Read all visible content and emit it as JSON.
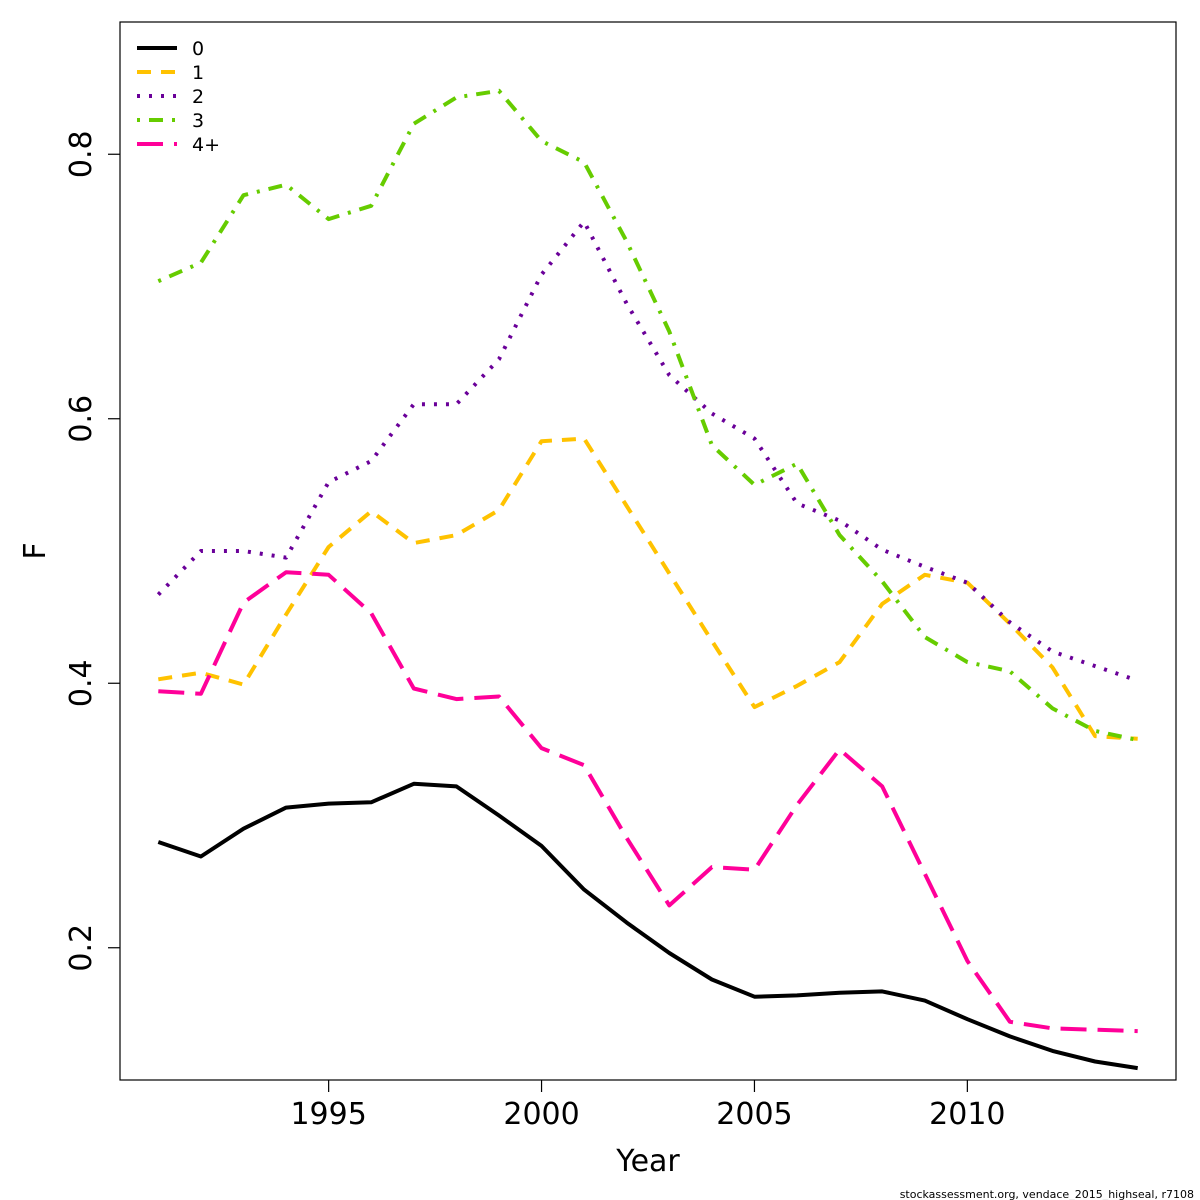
{
  "chart_data": {
    "type": "line",
    "xlabel": "Year",
    "ylabel": "F",
    "xlim": [
      1990.1,
      2014.9
    ],
    "ylim": [
      0.1,
      0.9
    ],
    "x_ticks": [
      1995,
      2000,
      2005,
      2010
    ],
    "x_tick_labels": [
      "1995",
      "2000",
      "2005",
      "2010"
    ],
    "y_ticks": [
      0.2,
      0.4,
      0.6,
      0.8
    ],
    "y_tick_labels": [
      "0.2",
      "0.4",
      "0.6",
      "0.8"
    ],
    "grid": false,
    "legend_position": "top-left",
    "x": [
      1991,
      1992,
      1993,
      1994,
      1995,
      1996,
      1997,
      1998,
      1999,
      2000,
      2001,
      2002,
      2003,
      2004,
      2005,
      2006,
      2007,
      2008,
      2009,
      2010,
      2011,
      2012,
      2013,
      2014
    ],
    "series": [
      {
        "name": "0",
        "color": "#000000",
        "dash": "solid",
        "values": [
          0.28,
          0.269,
          0.29,
          0.306,
          0.309,
          0.31,
          0.324,
          0.322,
          0.3,
          0.277,
          0.244,
          0.219,
          0.196,
          0.176,
          0.163,
          0.164,
          0.166,
          0.167,
          0.16,
          0.146,
          0.133,
          0.122,
          0.114,
          0.109
        ]
      },
      {
        "name": "1",
        "color": "#FFC200",
        "dash": "dashed",
        "values": [
          0.403,
          0.408,
          0.399,
          0.452,
          0.503,
          0.53,
          0.506,
          0.512,
          0.531,
          0.583,
          0.585,
          0.534,
          0.483,
          0.432,
          0.382,
          0.398,
          0.416,
          0.46,
          0.482,
          0.476,
          0.445,
          0.412,
          0.36,
          0.358
        ]
      },
      {
        "name": "2",
        "color": "#6A0099",
        "dash": "dotted",
        "values": [
          0.467,
          0.5,
          0.5,
          0.495,
          0.552,
          0.568,
          0.611,
          0.611,
          0.645,
          0.709,
          0.749,
          0.687,
          0.633,
          0.604,
          0.585,
          0.536,
          0.523,
          0.501,
          0.488,
          0.476,
          0.446,
          0.424,
          0.413,
          0.402
        ]
      },
      {
        "name": "3",
        "color": "#66CC00",
        "dash": "dotdash",
        "values": [
          0.704,
          0.718,
          0.769,
          0.777,
          0.751,
          0.761,
          0.823,
          0.843,
          0.848,
          0.81,
          0.794,
          0.734,
          0.666,
          0.58,
          0.55,
          0.566,
          0.512,
          0.477,
          0.435,
          0.416,
          0.409,
          0.381,
          0.364,
          0.357
        ]
      },
      {
        "name": "4+",
        "color": "#FF0099",
        "dash": "longdash",
        "values": [
          0.394,
          0.392,
          0.461,
          0.484,
          0.482,
          0.453,
          0.396,
          0.388,
          0.39,
          0.351,
          0.338,
          0.283,
          0.232,
          0.261,
          0.259,
          0.308,
          0.35,
          0.322,
          0.256,
          0.19,
          0.144,
          0.139,
          0.138,
          0.137
        ]
      }
    ]
  },
  "footer": "stockassessment.org, vendace_2015_highseal, r7108"
}
